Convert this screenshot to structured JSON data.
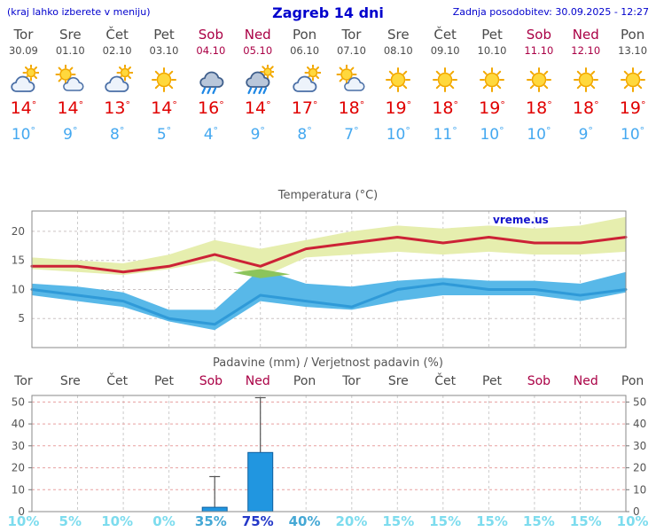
{
  "header": {
    "note": "(kraj lahko izberete v meniju)",
    "title": "Zagreb 14 dni",
    "updated": "Zadnja posodobitev: 30.09.2025 - 12:27"
  },
  "colors": {
    "header_blue": "#0000cd",
    "weekend_red": "#aa0045",
    "weekday_grey": "#4a4a4a",
    "tmax_red": "#e00000",
    "tmin_blue": "#44a8f0",
    "prob_light": "#7ddcee",
    "prob_medium": "#45a8d5",
    "prob_dark": "#2438c8",
    "bar_blue": "#2196e0"
  },
  "days": [
    {
      "name": "Tor",
      "date": "30.09",
      "weekend": false,
      "icon": "mostly-cloudy",
      "tmax": 14,
      "tmin": 10,
      "precip_prob": 10
    },
    {
      "name": "Sre",
      "date": "01.10",
      "weekend": false,
      "icon": "partly-sunny",
      "tmax": 14,
      "tmin": 9,
      "precip_prob": 5
    },
    {
      "name": "Čet",
      "date": "02.10",
      "weekend": false,
      "icon": "mostly-cloudy",
      "tmax": 13,
      "tmin": 8,
      "precip_prob": 10
    },
    {
      "name": "Pet",
      "date": "03.10",
      "weekend": false,
      "icon": "sunny",
      "tmax": 14,
      "tmin": 5,
      "precip_prob": 0
    },
    {
      "name": "Sob",
      "date": "04.10",
      "weekend": true,
      "icon": "rain",
      "tmax": 16,
      "tmin": 4,
      "precip_prob": 35
    },
    {
      "name": "Ned",
      "date": "05.10",
      "weekend": true,
      "icon": "rain-sun",
      "tmax": 14,
      "tmin": 9,
      "precip_prob": 75
    },
    {
      "name": "Pon",
      "date": "06.10",
      "weekend": false,
      "icon": "mostly-cloudy",
      "tmax": 17,
      "tmin": 8,
      "precip_prob": 40
    },
    {
      "name": "Tor",
      "date": "07.10",
      "weekend": false,
      "icon": "partly-sunny",
      "tmax": 18,
      "tmin": 7,
      "precip_prob": 20
    },
    {
      "name": "Sre",
      "date": "08.10",
      "weekend": false,
      "icon": "sunny",
      "tmax": 19,
      "tmin": 10,
      "precip_prob": 15
    },
    {
      "name": "Čet",
      "date": "09.10",
      "weekend": false,
      "icon": "sunny",
      "tmax": 18,
      "tmin": 11,
      "precip_prob": 15
    },
    {
      "name": "Pet",
      "date": "10.10",
      "weekend": false,
      "icon": "sunny",
      "tmax": 19,
      "tmin": 10,
      "precip_prob": 15
    },
    {
      "name": "Sob",
      "date": "11.10",
      "weekend": true,
      "icon": "sunny",
      "tmax": 18,
      "tmin": 10,
      "precip_prob": 15
    },
    {
      "name": "Ned",
      "date": "12.10",
      "weekend": true,
      "icon": "sunny",
      "tmax": 18,
      "tmin": 9,
      "precip_prob": 15
    },
    {
      "name": "Pon",
      "date": "13.10",
      "weekend": false,
      "icon": "sunny",
      "tmax": 19,
      "tmin": 10,
      "precip_prob": 10
    }
  ],
  "chart_data": [
    {
      "type": "area",
      "title": "Temperatura (°C)",
      "watermark": "vreme.us",
      "ylim": [
        0,
        23.5
      ],
      "yticks": [
        5,
        10,
        15,
        20
      ],
      "grid": true,
      "legend": "none",
      "x_categories": [
        "Tor 30.09",
        "Sre 01.10",
        "Čet 02.10",
        "Pet 03.10",
        "Sob 04.10",
        "Ned 05.10",
        "Pon 06.10",
        "Tor 07.10",
        "Sre 08.10",
        "Čet 09.10",
        "Pet 10.10",
        "Sob 11.10",
        "Ned 12.10",
        "Pon 13.10"
      ],
      "series": [
        {
          "name": "tmax-uncertainty-band",
          "kind": "band",
          "color": "#e6eeae",
          "upper": [
            15.5,
            15,
            14.5,
            16,
            18.5,
            17,
            18.5,
            20,
            21,
            20.5,
            21,
            20.5,
            21,
            22.5
          ],
          "lower": [
            13.5,
            13,
            12.5,
            13.5,
            15,
            12,
            15.5,
            16,
            16.5,
            16,
            16.5,
            16,
            16,
            16.5
          ]
        },
        {
          "name": "tmin-uncertainty-band",
          "kind": "band",
          "color": "#58b8e8",
          "upper": [
            11,
            10.5,
            9.5,
            6.5,
            6.5,
            13.5,
            11,
            10.5,
            11.5,
            12,
            11.5,
            11.5,
            11,
            13
          ],
          "lower": [
            9,
            8,
            7,
            4.5,
            3,
            8,
            7,
            6.5,
            8,
            9,
            9,
            9,
            8,
            9.5
          ]
        },
        {
          "name": "band-overlap",
          "kind": "polygon",
          "color": "#8cc45c",
          "points": [
            [
              4.4,
              12.9
            ],
            [
              5,
              13.5
            ],
            [
              5.65,
              12.6
            ],
            [
              5,
              11.95
            ]
          ]
        },
        {
          "name": "tmax-line",
          "kind": "line",
          "color": "#cc2236",
          "width": 3,
          "values": [
            14,
            14,
            13,
            14,
            16,
            14,
            17,
            18,
            19,
            18,
            19,
            18,
            18,
            19
          ]
        },
        {
          "name": "tmin-line",
          "kind": "line",
          "color": "#2f9ad8",
          "width": 3,
          "values": [
            10,
            9,
            8,
            5,
            4,
            9,
            8,
            7,
            10,
            11,
            10,
            10,
            9,
            10
          ]
        }
      ]
    },
    {
      "type": "bar",
      "title": "Padavine (mm) / Verjetnost padavin (%)",
      "categories": [
        "Tor",
        "Sre",
        "Čet",
        "Pet",
        "Sob",
        "Ned",
        "Pon",
        "Tor",
        "Sre",
        "Čet",
        "Pet",
        "Sob",
        "Ned",
        "Pon"
      ],
      "ylim": [
        0,
        53
      ],
      "yticks": [
        0,
        10,
        20,
        30,
        40,
        50
      ],
      "grid": true,
      "precip_mm": [
        0,
        0,
        0,
        0,
        2,
        27,
        0,
        0,
        0,
        0,
        0,
        0,
        0,
        0
      ],
      "precip_max_mm": [
        0,
        0,
        0,
        0,
        16,
        52,
        0,
        0,
        0,
        0,
        0,
        0,
        0,
        0
      ],
      "probability_pct": [
        10,
        5,
        10,
        0,
        35,
        75,
        40,
        20,
        15,
        15,
        15,
        15,
        15,
        10
      ],
      "bar_color": "#2196e0"
    }
  ]
}
